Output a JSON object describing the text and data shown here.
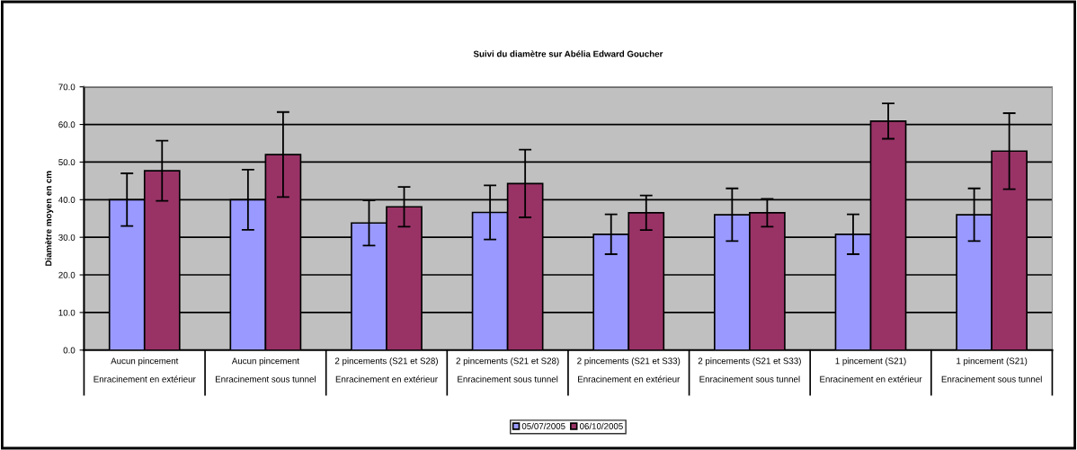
{
  "chart_data": {
    "type": "bar",
    "title": "Suivi du diamètre sur Abélia Edward Goucher",
    "ylabel": "Diamètre moyen en cm",
    "categories": [
      "Aucun pincement\nEnracinement en extérieur",
      "Aucun pincement\nEnracinement sous tunnel",
      "2 pincements (S21 et S28)\nEnracinement en extérieur",
      "2 pincements (S21 et S28)\nEnracinement sous tunnel",
      "2 pincements (S21 et S33)\nEnracinement en extérieur",
      "2 pincements (S21 et S33)\nEnracinement sous tunnel",
      "1 pincement (S21)\nEnracinement en extérieur",
      "1 pincement (S21)\nEnracinement sous tunnel"
    ],
    "series": [
      {
        "name": "05/07/2005",
        "color": "#9999ff",
        "values": [
          40.0,
          40.0,
          33.8,
          36.6,
          30.8,
          36.0,
          30.8,
          36.0
        ],
        "errors": [
          7.0,
          8.0,
          6.0,
          7.2,
          5.3,
          7.0,
          5.3,
          7.0
        ]
      },
      {
        "name": "06/10/2005",
        "color": "#993366",
        "values": [
          47.7,
          52.0,
          38.1,
          44.3,
          36.5,
          36.5,
          60.9,
          52.9
        ],
        "errors": [
          8.0,
          11.3,
          5.3,
          9.0,
          4.6,
          3.7,
          4.7,
          10.1
        ]
      }
    ],
    "ylim": [
      0,
      70
    ],
    "yticks": [
      {
        "value": 0,
        "label": "0.0"
      },
      {
        "value": 10,
        "label": "10.0"
      },
      {
        "value": 20,
        "label": "20.0"
      },
      {
        "value": 30,
        "label": "30.0"
      },
      {
        "value": 40,
        "label": "40.0"
      },
      {
        "value": 50,
        "label": "50.0"
      },
      {
        "value": 60,
        "label": "60.0"
      },
      {
        "value": 70,
        "label": "70.0"
      }
    ],
    "grid": "y",
    "legend": "bottom"
  }
}
